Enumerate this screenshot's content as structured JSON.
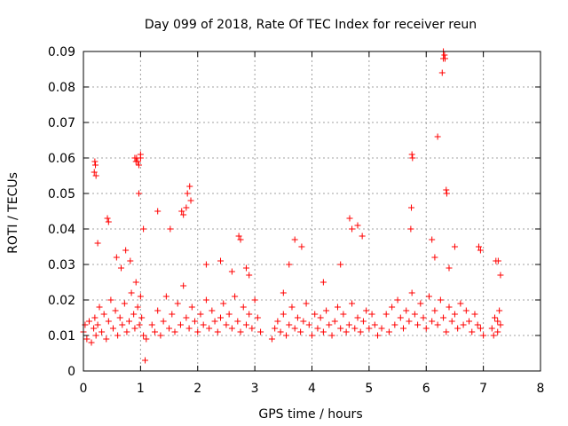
{
  "chart_data": {
    "type": "scatter",
    "title": "Day 099 of 2018, Rate Of TEC Index for receiver reun",
    "xlabel": "GPS time / hours",
    "ylabel": "ROTI / TECUs",
    "xlim": [
      0,
      8
    ],
    "ylim": [
      0,
      0.09
    ],
    "xticks": [
      "0",
      "1",
      "2",
      "3",
      "4",
      "5",
      "6",
      "7",
      "8"
    ],
    "yticks": [
      "0",
      "0.01",
      "0.02",
      "0.03",
      "0.04",
      "0.05",
      "0.06",
      "0.07",
      "0.08",
      "0.09"
    ],
    "grid": true,
    "marker": "+",
    "color": "#ff0000",
    "series": [
      {
        "name": "ROTI",
        "x": [
          0.0,
          0.03,
          0.06,
          0.1,
          0.14,
          0.18,
          0.2,
          0.22,
          0.25,
          0.28,
          0.32,
          0.36,
          0.4,
          0.44,
          0.48,
          0.52,
          0.56,
          0.6,
          0.64,
          0.68,
          0.72,
          0.76,
          0.8,
          0.84,
          0.88,
          0.9,
          0.92,
          0.95,
          0.98,
          1.0,
          1.02,
          1.05,
          1.08,
          0.2,
          0.21,
          0.22,
          0.19,
          0.9,
          0.92,
          0.93,
          0.95,
          0.97,
          1.0,
          1.0,
          0.97,
          0.42,
          0.44,
          0.25,
          0.58,
          0.66,
          0.74,
          0.82,
          1.05,
          1.1,
          1.2,
          1.25,
          1.3,
          1.35,
          1.4,
          1.45,
          1.5,
          1.55,
          1.6,
          1.65,
          1.7,
          1.75,
          1.8,
          1.85,
          1.9,
          1.95,
          2.0,
          2.05,
          2.1,
          2.15,
          2.2,
          2.25,
          2.3,
          2.35,
          2.4,
          2.45,
          2.5,
          2.55,
          2.6,
          2.65,
          2.7,
          2.75,
          2.8,
          2.85,
          2.9,
          2.95,
          3.0,
          3.05,
          3.1,
          1.3,
          1.52,
          1.72,
          1.75,
          1.8,
          1.82,
          1.86,
          1.88,
          2.72,
          2.75,
          2.15,
          2.4,
          2.6,
          2.85,
          2.9,
          3.3,
          3.35,
          3.4,
          3.45,
          3.5,
          3.55,
          3.6,
          3.65,
          3.7,
          3.75,
          3.8,
          3.85,
          3.9,
          3.95,
          4.0,
          4.05,
          4.1,
          4.15,
          4.2,
          4.25,
          4.3,
          4.35,
          4.4,
          4.45,
          4.5,
          4.55,
          4.6,
          4.65,
          4.7,
          4.75,
          4.8,
          4.85,
          4.9,
          4.95,
          5.0,
          5.05,
          5.1,
          5.15,
          3.6,
          3.7,
          3.82,
          4.66,
          4.7,
          4.8,
          4.88,
          4.5,
          4.2,
          3.5,
          5.22,
          5.3,
          5.35,
          5.4,
          5.45,
          5.5,
          5.55,
          5.6,
          5.65,
          5.7,
          5.75,
          5.8,
          5.85,
          5.9,
          5.95,
          6.0,
          6.05,
          6.1,
          6.15,
          6.2,
          6.25,
          6.3,
          6.35,
          6.4,
          6.45,
          6.5,
          6.55,
          6.6,
          6.65,
          6.7,
          6.75,
          6.8,
          6.85,
          6.9,
          6.95,
          7.0,
          5.75,
          5.76,
          5.74,
          5.73,
          6.2,
          6.28,
          6.3,
          6.32,
          6.3,
          6.33,
          6.35,
          6.36,
          6.1,
          6.5,
          6.15,
          6.4,
          6.92,
          6.95,
          7.15,
          7.2,
          7.25,
          7.28,
          7.3,
          7.22,
          7.26,
          7.3,
          7.18,
          7.25
        ],
        "y": [
          0.011,
          0.013,
          0.009,
          0.014,
          0.008,
          0.012,
          0.015,
          0.01,
          0.013,
          0.018,
          0.011,
          0.016,
          0.009,
          0.014,
          0.02,
          0.012,
          0.017,
          0.01,
          0.015,
          0.013,
          0.019,
          0.011,
          0.014,
          0.022,
          0.016,
          0.012,
          0.025,
          0.018,
          0.013,
          0.021,
          0.015,
          0.01,
          0.003,
          0.059,
          0.058,
          0.055,
          0.056,
          0.06,
          0.059,
          0.06,
          0.059,
          0.058,
          0.061,
          0.06,
          0.05,
          0.043,
          0.042,
          0.036,
          0.032,
          0.029,
          0.034,
          0.031,
          0.04,
          0.009,
          0.013,
          0.011,
          0.017,
          0.01,
          0.014,
          0.021,
          0.012,
          0.016,
          0.011,
          0.019,
          0.013,
          0.024,
          0.015,
          0.012,
          0.018,
          0.014,
          0.011,
          0.016,
          0.013,
          0.02,
          0.012,
          0.017,
          0.014,
          0.011,
          0.015,
          0.019,
          0.013,
          0.016,
          0.012,
          0.021,
          0.014,
          0.011,
          0.018,
          0.013,
          0.016,
          0.012,
          0.02,
          0.015,
          0.011,
          0.045,
          0.04,
          0.045,
          0.044,
          0.046,
          0.05,
          0.052,
          0.048,
          0.038,
          0.037,
          0.03,
          0.031,
          0.028,
          0.029,
          0.027,
          0.009,
          0.012,
          0.014,
          0.011,
          0.016,
          0.01,
          0.013,
          0.018,
          0.012,
          0.015,
          0.011,
          0.014,
          0.019,
          0.013,
          0.01,
          0.016,
          0.012,
          0.015,
          0.011,
          0.017,
          0.013,
          0.01,
          0.014,
          0.018,
          0.012,
          0.016,
          0.011,
          0.013,
          0.019,
          0.012,
          0.015,
          0.011,
          0.014,
          0.017,
          0.012,
          0.016,
          0.013,
          0.01,
          0.03,
          0.037,
          0.035,
          0.043,
          0.04,
          0.041,
          0.038,
          0.03,
          0.025,
          0.022,
          0.012,
          0.016,
          0.011,
          0.018,
          0.013,
          0.02,
          0.015,
          0.012,
          0.017,
          0.014,
          0.022,
          0.016,
          0.013,
          0.019,
          0.015,
          0.012,
          0.021,
          0.014,
          0.017,
          0.013,
          0.02,
          0.015,
          0.011,
          0.018,
          0.014,
          0.016,
          0.012,
          0.019,
          0.013,
          0.017,
          0.014,
          0.011,
          0.016,
          0.013,
          0.012,
          0.01,
          0.061,
          0.06,
          0.046,
          0.04,
          0.066,
          0.084,
          0.088,
          0.089,
          0.09,
          0.088,
          0.051,
          0.05,
          0.037,
          0.035,
          0.032,
          0.029,
          0.035,
          0.034,
          0.012,
          0.015,
          0.011,
          0.017,
          0.013,
          0.031,
          0.031,
          0.027,
          0.01,
          0.014
        ]
      }
    ]
  }
}
